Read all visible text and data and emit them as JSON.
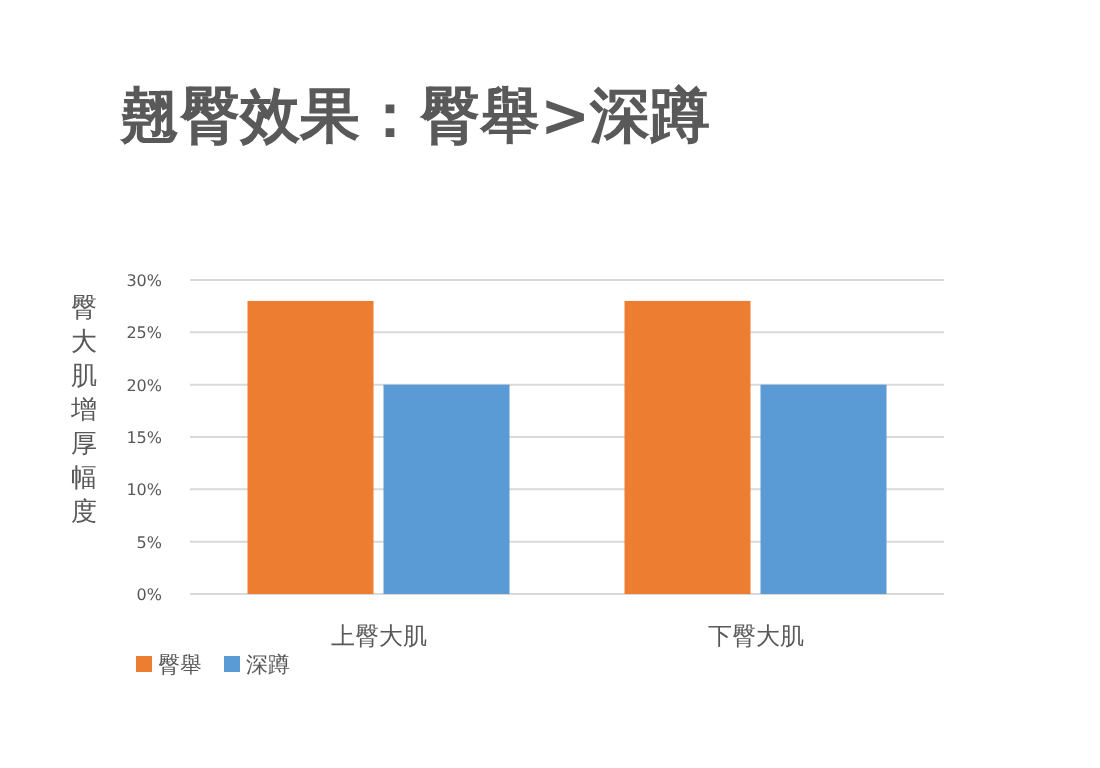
{
  "chart_data": {
    "type": "bar",
    "title": "翹臀效果：臀舉>深蹲",
    "ylabel": "臀大肌增厚幅度",
    "categories": [
      "上臀大肌",
      "下臀大肌"
    ],
    "series": [
      {
        "name": "臀舉",
        "color": "#ed7d31",
        "values": [
          28,
          28
        ]
      },
      {
        "name": "深蹲",
        "color": "#5b9bd5",
        "values": [
          20,
          20
        ]
      }
    ],
    "ylim": [
      0,
      30
    ],
    "yticks": [
      {
        "value": 0,
        "label": "0%"
      },
      {
        "value": 5,
        "label": "5%"
      },
      {
        "value": 10,
        "label": "10%"
      },
      {
        "value": 15,
        "label": "15%"
      },
      {
        "value": 20,
        "label": "20%"
      },
      {
        "value": 25,
        "label": "25%"
      },
      {
        "value": 30,
        "label": "30%"
      }
    ],
    "grid": "y",
    "legend": "bottom left"
  }
}
